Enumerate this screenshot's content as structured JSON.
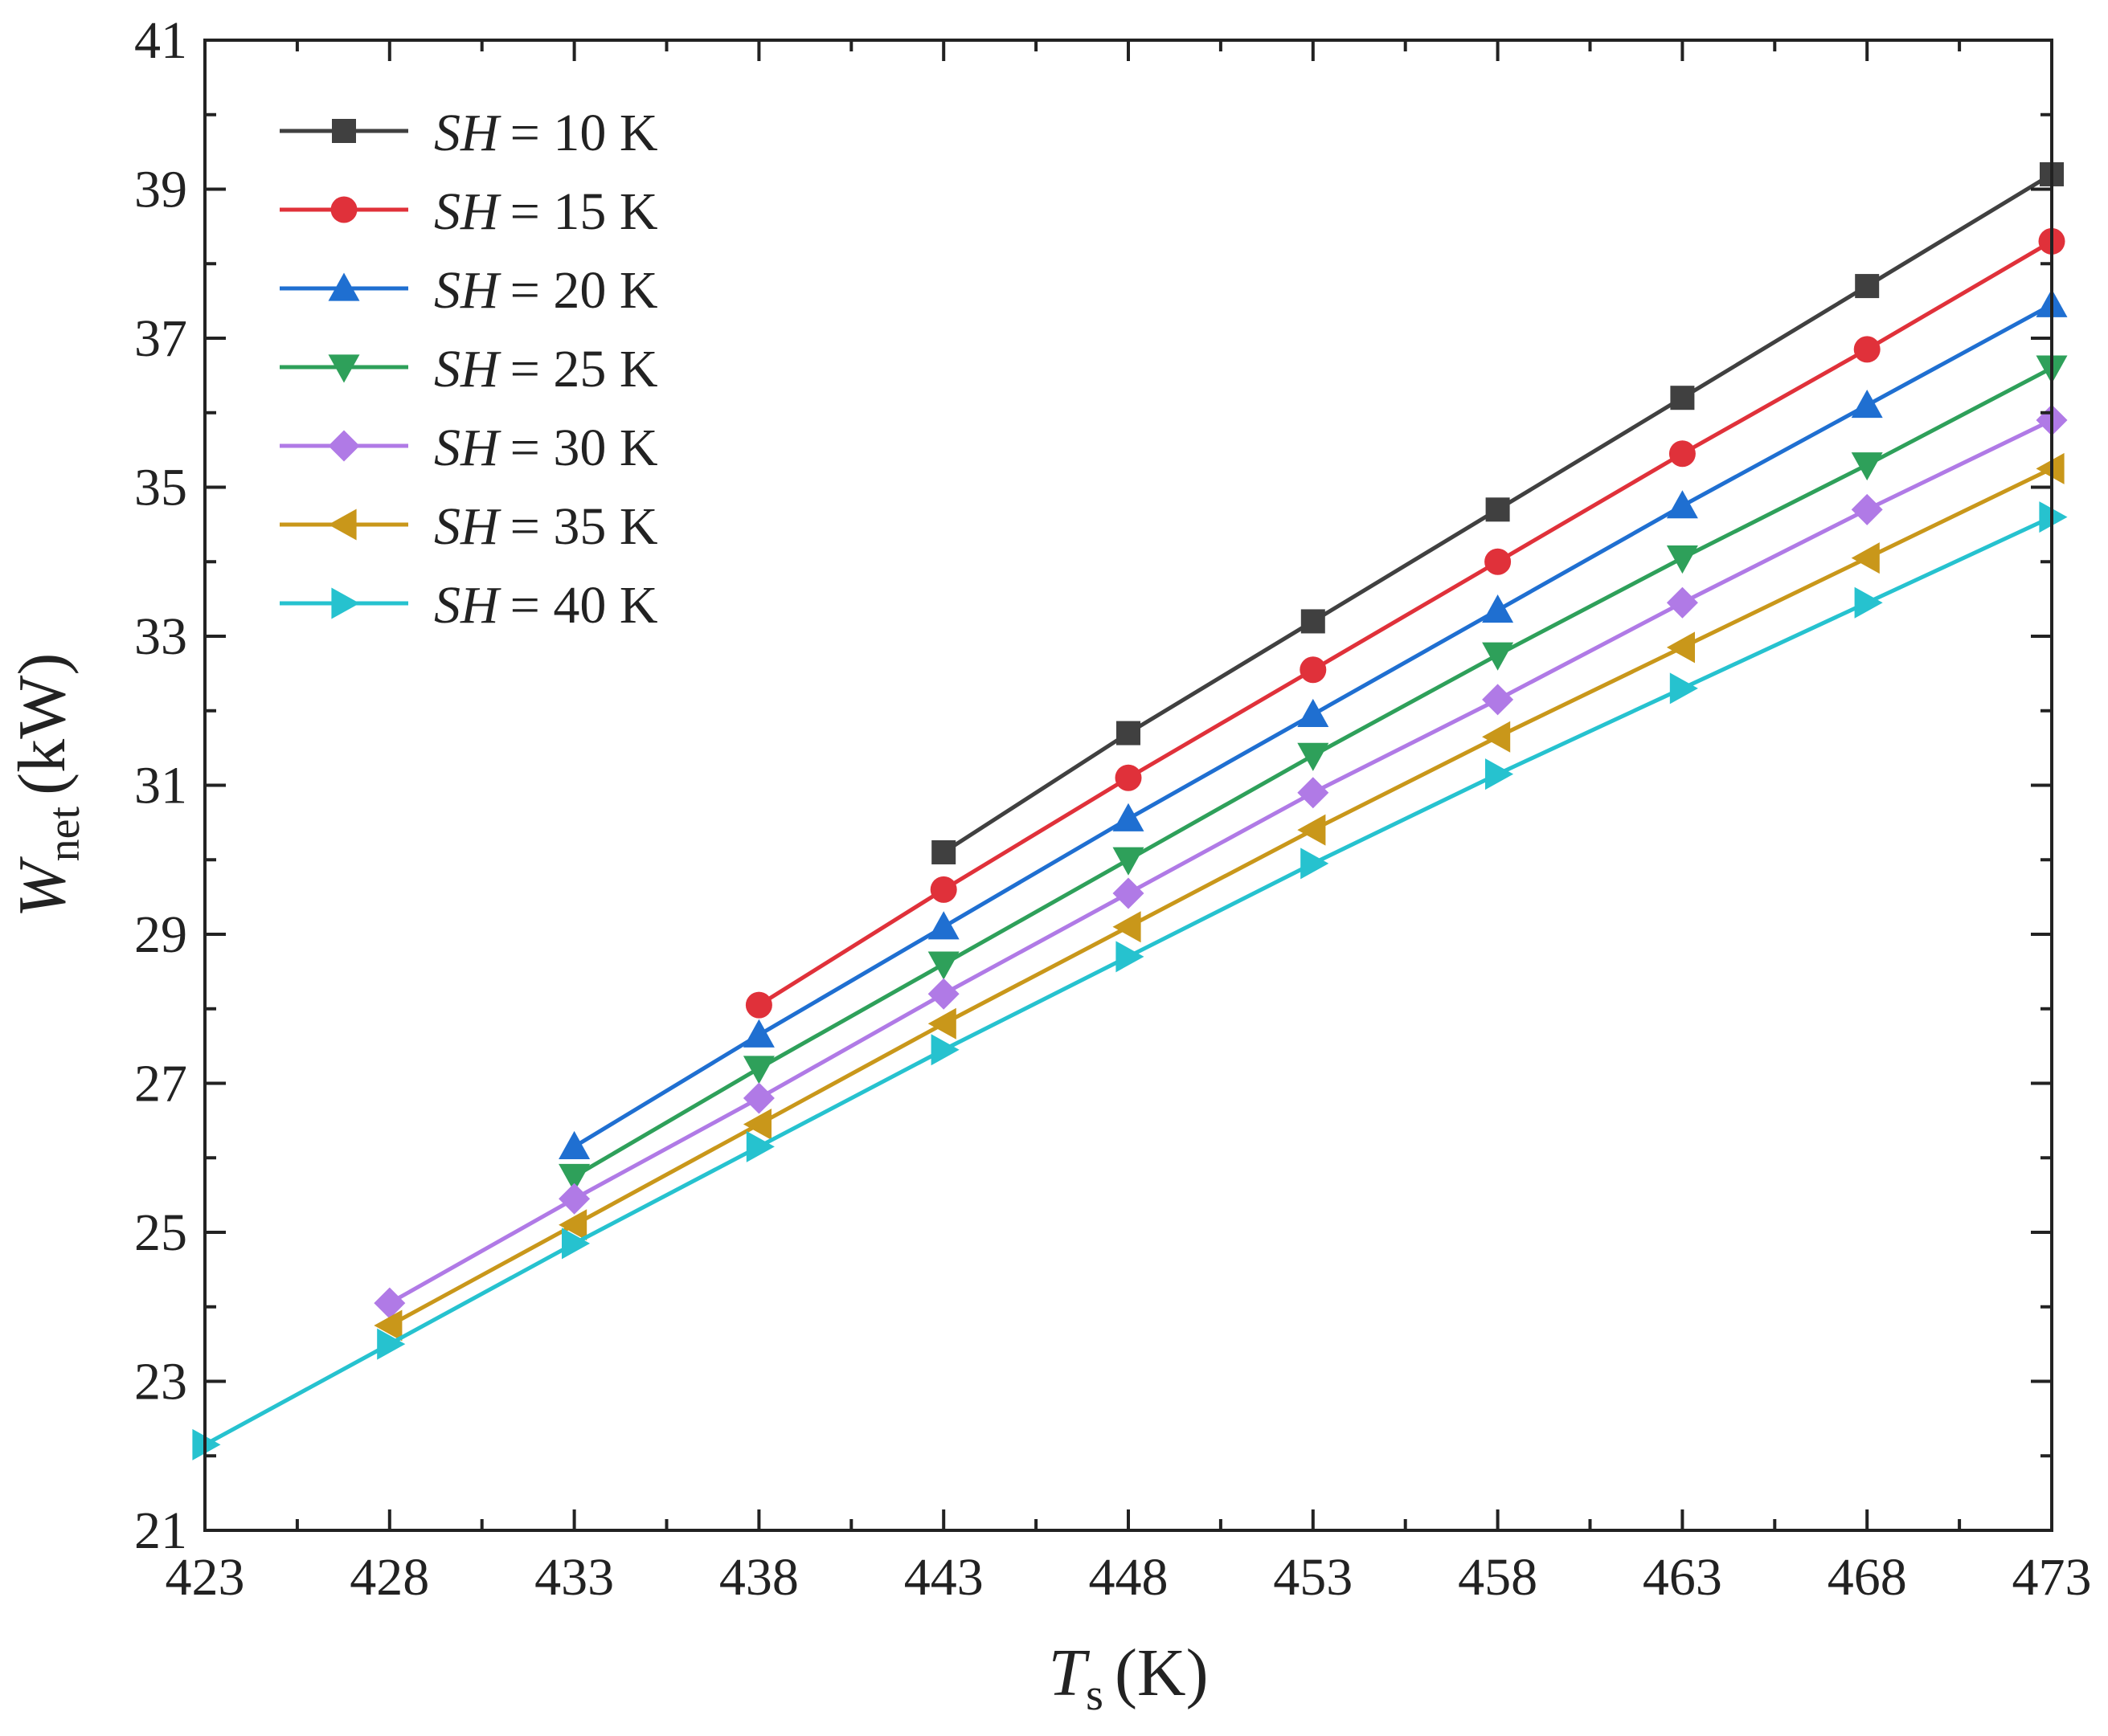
{
  "chart_data": {
    "type": "line",
    "title": "",
    "xlabel": {
      "symbol": "T",
      "subscript": "s",
      "unit": "(K)"
    },
    "ylabel": {
      "symbol": "W",
      "subscript": "net",
      "unit": "(kW)"
    },
    "xlim": [
      423,
      473
    ],
    "ylim": [
      21,
      41
    ],
    "xticks": [
      423,
      428,
      433,
      438,
      443,
      448,
      453,
      458,
      463,
      468,
      473
    ],
    "yticks": [
      21,
      23,
      25,
      27,
      29,
      31,
      33,
      35,
      37,
      39,
      41
    ],
    "grid": false,
    "legend_position": "top-left",
    "series": [
      {
        "name": "SH = 10 K",
        "label_symbol": "SH",
        "label_value": "= 10 K",
        "color": "#404040",
        "marker": "square",
        "x": [
          443,
          448,
          453,
          458,
          463,
          468,
          473
        ],
        "y": [
          30.1,
          31.7,
          33.2,
          34.7,
          36.2,
          37.7,
          39.2
        ]
      },
      {
        "name": "SH = 15 K",
        "label_symbol": "SH",
        "label_value": "= 15 K",
        "color": "#e0313a",
        "marker": "circle",
        "x": [
          438,
          443,
          448,
          453,
          458,
          463,
          468,
          473
        ],
        "y": [
          28.05,
          29.6,
          31.1,
          32.55,
          34.0,
          35.45,
          36.85,
          38.3
        ]
      },
      {
        "name": "SH = 20 K",
        "label_symbol": "SH",
        "label_value": "= 20 K",
        "color": "#1f6fd1",
        "marker": "triangle-up",
        "x": [
          433,
          438,
          443,
          448,
          453,
          458,
          463,
          468,
          473
        ],
        "y": [
          26.15,
          27.65,
          29.1,
          30.55,
          31.95,
          33.35,
          34.75,
          36.1,
          37.45
        ]
      },
      {
        "name": "SH = 25 K",
        "label_symbol": "SH",
        "label_value": "= 25 K",
        "color": "#2ea05a",
        "marker": "triangle-down",
        "x": [
          433,
          438,
          443,
          448,
          453,
          458,
          463,
          468,
          473
        ],
        "y": [
          25.75,
          27.2,
          28.6,
          30.0,
          31.4,
          32.75,
          34.05,
          35.3,
          36.6
        ]
      },
      {
        "name": "SH = 30 K",
        "label_symbol": "SH",
        "label_value": "= 30 K",
        "color": "#b07ae6",
        "marker": "diamond",
        "x": [
          428,
          433,
          438,
          443,
          448,
          453,
          458,
          463,
          468,
          473
        ],
        "y": [
          24.05,
          25.45,
          26.8,
          28.2,
          29.55,
          30.9,
          32.15,
          33.45,
          34.7,
          35.9
        ]
      },
      {
        "name": "SH = 35 K",
        "label_symbol": "SH",
        "label_value": "= 35 K",
        "color": "#c9971a",
        "marker": "triangle-left",
        "x": [
          428,
          433,
          438,
          443,
          448,
          453,
          458,
          463,
          468,
          473
        ],
        "y": [
          23.75,
          25.1,
          26.45,
          27.8,
          29.1,
          30.4,
          31.65,
          32.85,
          34.05,
          35.25
        ]
      },
      {
        "name": "SH = 40 K",
        "label_symbol": "SH",
        "label_value": "= 40 K",
        "color": "#26c2cf",
        "marker": "triangle-right",
        "x": [
          423,
          428,
          433,
          438,
          443,
          448,
          453,
          458,
          463,
          468,
          473
        ],
        "y": [
          22.15,
          23.5,
          24.85,
          26.15,
          27.45,
          28.7,
          29.95,
          31.15,
          32.3,
          33.45,
          34.6
        ]
      }
    ]
  }
}
